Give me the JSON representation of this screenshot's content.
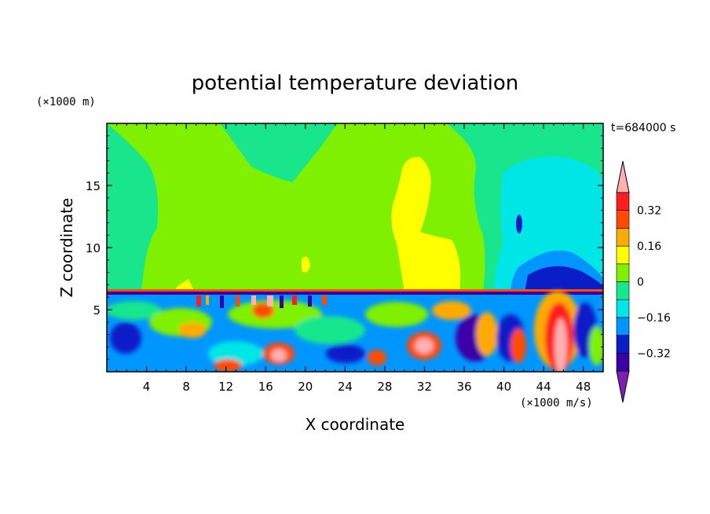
{
  "chart_data": {
    "type": "heatmap",
    "title": "potential temperature deviation",
    "xlabel": "X coordinate",
    "ylabel": "Z coordinate",
    "x_unit": "(×1000 m/s)",
    "y_unit": "(×1000 m)",
    "time_label": "t=684000 s",
    "xlim": [
      0,
      50
    ],
    "ylim": [
      0,
      20
    ],
    "x_ticks": [
      4,
      8,
      12,
      16,
      20,
      24,
      28,
      32,
      36,
      40,
      44,
      48
    ],
    "y_ticks": [
      5,
      10,
      15
    ],
    "colorbar": {
      "levels": [
        -0.4,
        -0.32,
        -0.24,
        -0.16,
        -0.08,
        0,
        0.08,
        0.16,
        0.24,
        0.32,
        0.4
      ],
      "colors": [
        "#7d1fb4",
        "#3a00a8",
        "#0a1ec8",
        "#0096ff",
        "#00e6e6",
        "#19e68c",
        "#7ff000",
        "#ffff00",
        "#ffaa00",
        "#ff4b00",
        "#ff1e1e",
        "#ffb0b0"
      ],
      "tick_labels": [
        "0.32",
        "0.16",
        "0",
        "−0.16",
        "−0.32"
      ],
      "tick_values": [
        0.32,
        0.16,
        0,
        -0.16,
        -0.32
      ]
    },
    "regions": [
      {
        "description": "upper layer mostly 0 to 0.08",
        "value": 0.04
      },
      {
        "description": "positive plume near x=30",
        "value": 0.12
      },
      {
        "description": "negative region near x=44-48 upper",
        "value": -0.1
      },
      {
        "description": "strong positive core near x=46 lower",
        "value": 0.4
      }
    ]
  }
}
